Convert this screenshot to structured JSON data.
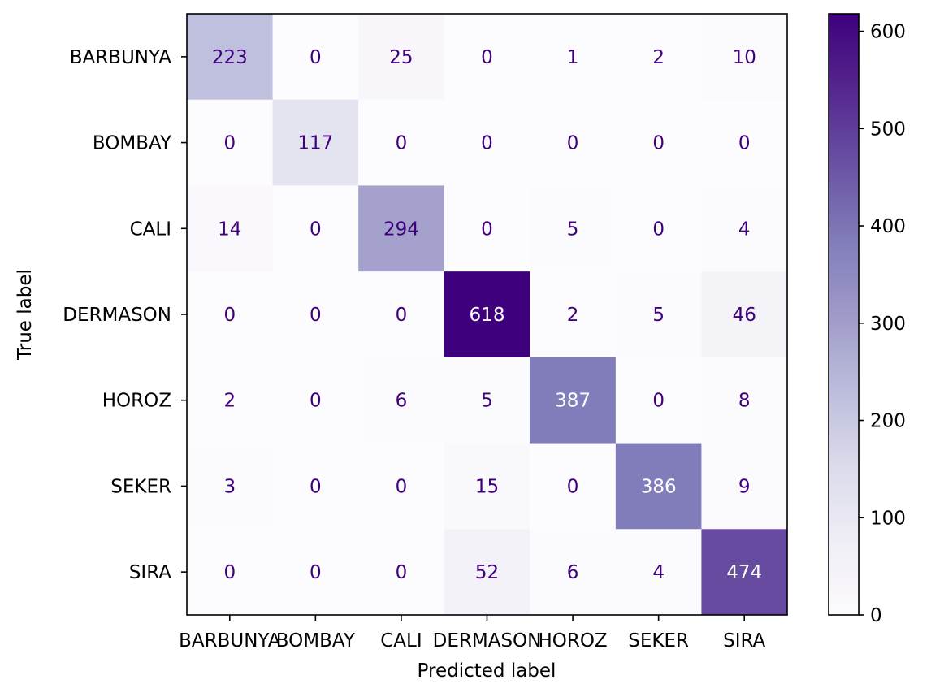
{
  "chart_data": {
    "type": "heatmap",
    "title": "",
    "xlabel": "Predicted label",
    "ylabel": "True label",
    "x_categories": [
      "BARBUNYA",
      "BOMBAY",
      "CALI",
      "DERMASON",
      "HOROZ",
      "SEKER",
      "SIRA"
    ],
    "y_categories": [
      "BARBUNYA",
      "BOMBAY",
      "CALI",
      "DERMASON",
      "HOROZ",
      "SEKER",
      "SIRA"
    ],
    "matrix": [
      [
        223,
        0,
        25,
        0,
        1,
        2,
        10
      ],
      [
        0,
        117,
        0,
        0,
        0,
        0,
        0
      ],
      [
        14,
        0,
        294,
        0,
        5,
        0,
        4
      ],
      [
        0,
        0,
        0,
        618,
        2,
        5,
        46
      ],
      [
        2,
        0,
        6,
        5,
        387,
        0,
        8
      ],
      [
        3,
        0,
        0,
        15,
        0,
        386,
        9
      ],
      [
        0,
        0,
        0,
        52,
        6,
        4,
        474
      ]
    ],
    "colormap": "Purples",
    "colors": {
      "low": "#fcfbfd",
      "high": "#3f007d",
      "text_dark": "#3f007d",
      "text_light": "#ffffff"
    },
    "colorbar": {
      "range": [
        0,
        618
      ],
      "ticks": [
        0,
        100,
        200,
        300,
        400,
        500,
        600
      ]
    },
    "grid": false
  }
}
